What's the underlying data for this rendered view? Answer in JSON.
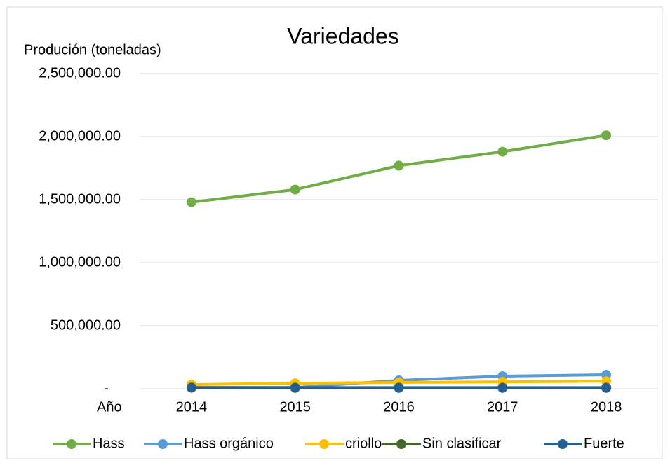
{
  "chart_data": {
    "type": "line",
    "title": "Variedades",
    "y_label": "Produción (toneladas)",
    "x_label": "Año",
    "categories": [
      "2014",
      "2015",
      "2016",
      "2017",
      "2018"
    ],
    "series": [
      {
        "name": "Hass",
        "color": "#70ad47",
        "values": [
          1480000,
          1580000,
          1770000,
          1880000,
          2010000
        ]
      },
      {
        "name": "Hass orgánico",
        "color": "#5b9bd5",
        "values": [
          10000,
          10000,
          67000,
          100000,
          111000
        ]
      },
      {
        "name": "criollo",
        "color": "#ffc000",
        "values": [
          33000,
          44000,
          50000,
          55000,
          60000
        ]
      },
      {
        "name": "Sin clasificar",
        "color": "#43682b",
        "values": [
          10000,
          9000,
          9000,
          9000,
          9000
        ]
      },
      {
        "name": "Fuerte",
        "color": "#255e91",
        "values": [
          8000,
          7000,
          7000,
          7000,
          7000
        ]
      }
    ],
    "ylim": [
      0,
      2500000
    ],
    "yticks": [
      {
        "value": 0,
        "label": "-"
      },
      {
        "value": 500000,
        "label": "500,000.00"
      },
      {
        "value": 1000000,
        "label": "1,000,000.00"
      },
      {
        "value": 1500000,
        "label": "1,500,000.00"
      },
      {
        "value": 2000000,
        "label": "2,000,000.00"
      },
      {
        "value": 2500000,
        "label": "2,500,000.00"
      }
    ],
    "grid": true,
    "legend": "bottom"
  }
}
